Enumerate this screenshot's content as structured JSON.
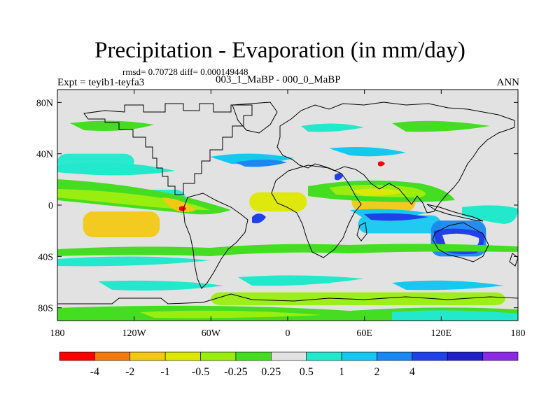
{
  "chart_data": {
    "type": "heatmap",
    "title": "Precipitation - Evaporation (in mm/day)",
    "stats_label": "rmsd= 0.70728 diff= 0.000149448",
    "experiment_label": "Expt = teyib1-teyfa3",
    "subtitle": "003_1_MaBP - 000_0_MaBP",
    "season": "ANN",
    "projection": "cylindrical-equidistant",
    "xlim": [
      -180,
      180
    ],
    "ylim": [
      -90,
      90
    ],
    "x_ticks": [
      {
        "value": -180,
        "label": "180"
      },
      {
        "value": -120,
        "label": "120W"
      },
      {
        "value": -60,
        "label": "60W"
      },
      {
        "value": 0,
        "label": "0"
      },
      {
        "value": 60,
        "label": "60E"
      },
      {
        "value": 120,
        "label": "120E"
      },
      {
        "value": 180,
        "label": "180"
      }
    ],
    "y_ticks": [
      {
        "value": 80,
        "label": "80N"
      },
      {
        "value": 40,
        "label": "40N"
      },
      {
        "value": 0,
        "label": "0"
      },
      {
        "value": -40,
        "label": "40S"
      },
      {
        "value": -80,
        "label": "80S"
      }
    ],
    "colorbar": {
      "bins": [
        {
          "color": "#ff0000"
        },
        {
          "color": "#f07a10"
        },
        {
          "color": "#f3c815"
        },
        {
          "color": "#dde800"
        },
        {
          "color": "#99ee10"
        },
        {
          "color": "#44dd22"
        },
        {
          "color": "#e2e2e2"
        },
        {
          "color": "#22e8cc"
        },
        {
          "color": "#16c8f0"
        },
        {
          "color": "#1a88f0"
        },
        {
          "color": "#2040e8"
        },
        {
          "color": "#2020c8"
        },
        {
          "color": "#8a2be2"
        }
      ],
      "labels": [
        "-4",
        "-2",
        "-1",
        "-0.5",
        "-0.25",
        "0.25",
        "0.5",
        "1",
        "2",
        "4"
      ]
    },
    "features": [
      {
        "name": "equatorial-pacific-deficit",
        "lon": [
          -160,
          -100
        ],
        "lat": [
          -25,
          -5
        ],
        "value": -2
      },
      {
        "name": "east-pacific-itcz-surplus",
        "lon": [
          -140,
          -80
        ],
        "lat": [
          0,
          12
        ],
        "value": 0.6
      },
      {
        "name": "equatorial-atlantic-deficit",
        "lon": [
          -30,
          15
        ],
        "lat": [
          -5,
          10
        ],
        "value": -1
      },
      {
        "name": "indian-ocean-deficit",
        "lon": [
          50,
          100
        ],
        "lat": [
          -5,
          15
        ],
        "value": -1.5
      },
      {
        "name": "south-indian-surplus",
        "lon": [
          55,
          120
        ],
        "lat": [
          -22,
          -8
        ],
        "value": 1.5
      },
      {
        "name": "north-pacific-surplus",
        "lon": [
          -180,
          -120
        ],
        "lat": [
          28,
          40
        ],
        "value": 0.6
      },
      {
        "name": "southern-ocean-deficit",
        "lon": [
          -60,
          170
        ],
        "lat": [
          -78,
          -68
        ],
        "value": -0.4
      },
      {
        "name": "australia-coast-surplus",
        "lon": [
          112,
          155
        ],
        "lat": [
          -40,
          -12
        ],
        "value": 2
      }
    ]
  }
}
